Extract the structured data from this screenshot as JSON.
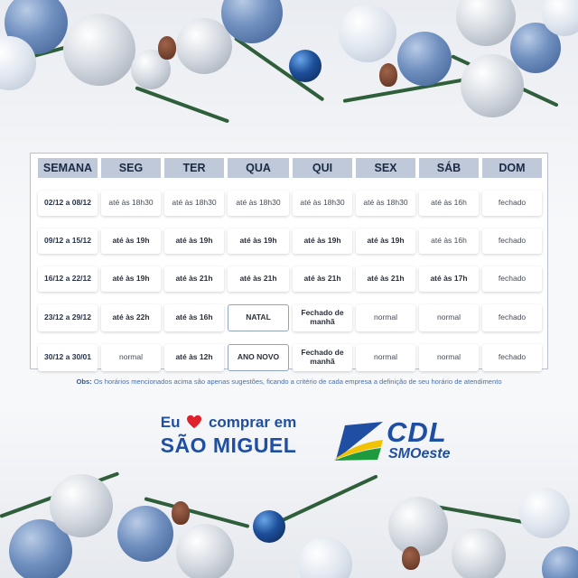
{
  "table": {
    "headers": [
      "SEMANA",
      "SEG",
      "TER",
      "QUA",
      "QUI",
      "SEX",
      "SÁB",
      "DOM"
    ],
    "rows": [
      {
        "week": "02/12 a 08/12",
        "cells": [
          "até às 18h30",
          "até às 18h30",
          "até às 18h30",
          "até às 18h30",
          "até às 18h30",
          "até às 16h",
          "fechado"
        ]
      },
      {
        "week": "09/12 a 15/12",
        "cells": [
          "até às 19h",
          "até às 19h",
          "até às 19h",
          "até às 19h",
          "até às 19h",
          "até às 16h",
          "fechado"
        ]
      },
      {
        "week": "16/12 a 22/12",
        "cells": [
          "até às 19h",
          "até às 21h",
          "até às 21h",
          "até às 21h",
          "até às 21h",
          "até às 17h",
          "fechado"
        ]
      },
      {
        "week": "23/12 a 29/12",
        "cells": [
          "até às 22h",
          "até às 16h",
          "NATAL",
          "Fechado de manhã",
          "normal",
          "normal",
          "fechado"
        ]
      },
      {
        "week": "30/12 a 30/01",
        "cells": [
          "normal",
          "até às 12h",
          "ANO NOVO",
          "Fechado de manhã",
          "normal",
          "normal",
          "fechado"
        ]
      }
    ]
  },
  "obs": {
    "label": "Obs:",
    "text": "Os horários mencionados acima são apenas sugestões, ficando a critério de cada empresa a definição de seu horário de atendimento"
  },
  "slogan": {
    "eu": "Eu",
    "heart_icon": "heart-icon",
    "comprar": "comprar em",
    "city": "SÃO MIGUEL"
  },
  "logo": {
    "name": "CDL",
    "sub": "SMOeste"
  },
  "colors": {
    "header_bg": "#bfc9da",
    "brand_blue": "#1f4fa3",
    "heart": "#e0202b",
    "logo_green": "#1f9a3e",
    "logo_yellow": "#f2c200"
  }
}
